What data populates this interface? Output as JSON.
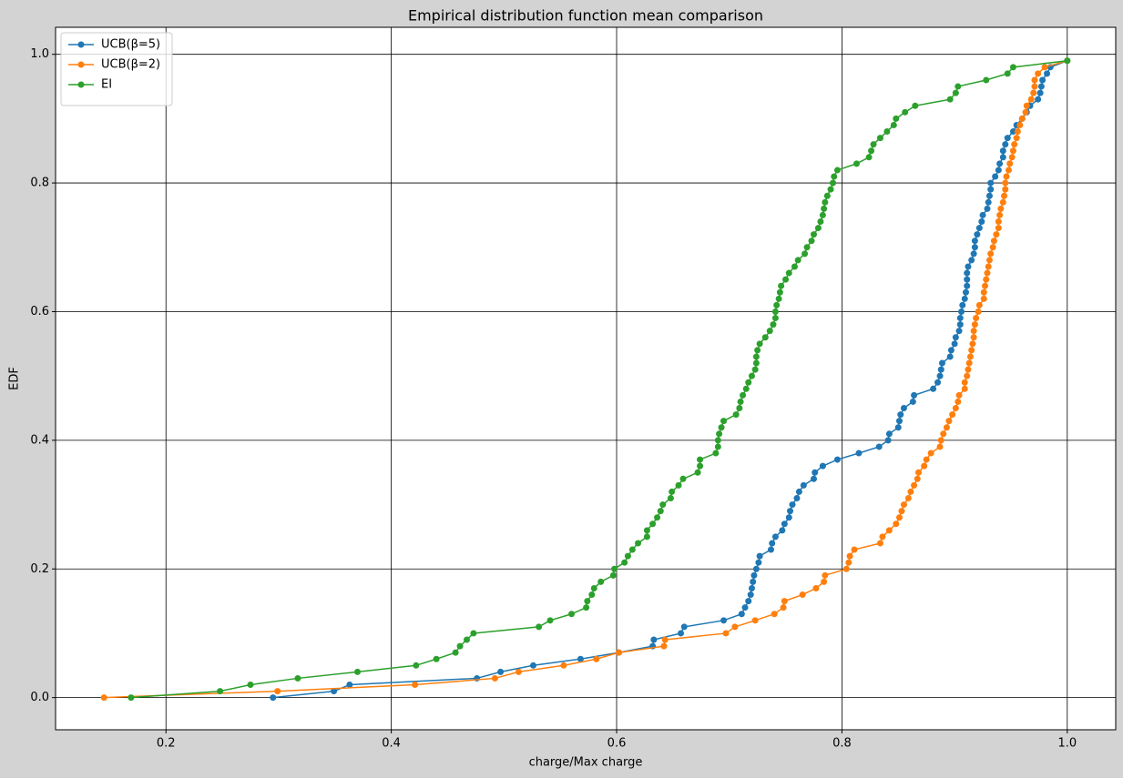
{
  "chart_data": {
    "type": "line",
    "title": "Empirical distribution function mean comparison",
    "xlabel": "charge/Max charge",
    "ylabel": "EDF",
    "xlim": [
      0.102,
      1.043
    ],
    "ylim": [
      -0.05,
      1.042
    ],
    "xticks": [
      0.2,
      0.4,
      0.6,
      0.8,
      {
        "value": 1,
        "label": "1.0"
      }
    ],
    "yticks": [
      {
        "value": 0,
        "label": "0.0"
      },
      0.2,
      0.4,
      0.6,
      0.8,
      {
        "value": 1,
        "label": "1.0"
      }
    ],
    "grid": true,
    "legend": "upper left",
    "series": [
      {
        "name": "UCB(β=5)",
        "color": "#1f77b4",
        "x": [
          0.295,
          0.349,
          0.363,
          0.476,
          0.497,
          0.526,
          0.568,
          0.602,
          0.632,
          0.633,
          0.657,
          0.66,
          0.695,
          0.711,
          0.714,
          0.717,
          0.719,
          0.72,
          0.721,
          0.722,
          0.724,
          0.726,
          0.727,
          0.737,
          0.738,
          0.741,
          0.747,
          0.749,
          0.753,
          0.754,
          0.756,
          0.76,
          0.762,
          0.766,
          0.775,
          0.776,
          0.783,
          0.796,
          0.815,
          0.833,
          0.841,
          0.842,
          0.85,
          0.851,
          0.852,
          0.855,
          0.863,
          0.864,
          0.881,
          0.885,
          0.887,
          0.888,
          0.889,
          0.896,
          0.897,
          0.9,
          0.901,
          0.904,
          0.905,
          0.905,
          0.906,
          0.907,
          0.909,
          0.91,
          0.911,
          0.911,
          0.911,
          0.912,
          0.915,
          0.917,
          0.918,
          0.918,
          0.92,
          0.922,
          0.924,
          0.925,
          0.929,
          0.93,
          0.931,
          0.932,
          0.932,
          0.936,
          0.939,
          0.94,
          0.943,
          0.943,
          0.945,
          0.947,
          0.952,
          0.955,
          0.96,
          0.964,
          0.967,
          0.974,
          0.976,
          0.977,
          0.978,
          0.982,
          0.985,
          1.0
        ],
        "values": [
          0,
          0.01,
          0.02,
          0.03,
          0.04,
          0.05,
          0.06,
          0.07,
          0.08,
          0.09,
          0.1,
          0.11,
          0.12,
          0.13,
          0.14,
          0.15,
          0.16,
          0.17,
          0.18,
          0.19,
          0.2,
          0.21,
          0.22,
          0.23,
          0.24,
          0.25,
          0.26,
          0.27,
          0.28,
          0.29,
          0.3,
          0.31,
          0.32,
          0.33,
          0.34,
          0.35,
          0.36,
          0.37,
          0.38,
          0.39,
          0.4,
          0.41,
          0.42,
          0.43,
          0.44,
          0.45,
          0.46,
          0.47,
          0.48,
          0.49,
          0.5,
          0.51,
          0.52,
          0.53,
          0.54,
          0.55,
          0.56,
          0.57,
          0.58,
          0.59,
          0.6,
          0.61,
          0.62,
          0.63,
          0.64,
          0.65,
          0.66,
          0.67,
          0.68,
          0.69,
          0.7,
          0.71,
          0.72,
          0.73,
          0.74,
          0.75,
          0.76,
          0.77,
          0.78,
          0.79,
          0.8,
          0.81,
          0.82,
          0.83,
          0.84,
          0.85,
          0.86,
          0.87,
          0.88,
          0.89,
          0.9,
          0.91,
          0.92,
          0.93,
          0.94,
          0.95,
          0.96,
          0.97,
          0.98,
          0.99
        ]
      },
      {
        "name": "UCB(β=2)",
        "color": "#ff7f0e",
        "x": [
          0.145,
          0.299,
          0.421,
          0.492,
          0.513,
          0.553,
          0.582,
          0.602,
          0.642,
          0.643,
          0.697,
          0.705,
          0.723,
          0.74,
          0.748,
          0.749,
          0.765,
          0.777,
          0.784,
          0.785,
          0.804,
          0.806,
          0.807,
          0.811,
          0.834,
          0.836,
          0.842,
          0.848,
          0.851,
          0.853,
          0.855,
          0.859,
          0.861,
          0.864,
          0.867,
          0.868,
          0.873,
          0.875,
          0.879,
          0.887,
          0.888,
          0.89,
          0.893,
          0.895,
          0.898,
          0.901,
          0.903,
          0.904,
          0.909,
          0.909,
          0.911,
          0.912,
          0.913,
          0.914,
          0.915,
          0.916,
          0.917,
          0.917,
          0.918,
          0.919,
          0.921,
          0.922,
          0.926,
          0.926,
          0.927,
          0.928,
          0.929,
          0.93,
          0.931,
          0.932,
          0.934,
          0.935,
          0.937,
          0.939,
          0.939,
          0.94,
          0.941,
          0.943,
          0.944,
          0.945,
          0.945,
          0.946,
          0.948,
          0.949,
          0.951,
          0.952,
          0.953,
          0.955,
          0.956,
          0.958,
          0.96,
          0.963,
          0.964,
          0.968,
          0.97,
          0.971,
          0.971,
          0.974,
          0.98,
          1.0
        ],
        "values": [
          0,
          0.01,
          0.02,
          0.03,
          0.04,
          0.05,
          0.06,
          0.07,
          0.08,
          0.09,
          0.1,
          0.11,
          0.12,
          0.13,
          0.14,
          0.15,
          0.16,
          0.17,
          0.18,
          0.19,
          0.2,
          0.21,
          0.22,
          0.23,
          0.24,
          0.25,
          0.26,
          0.27,
          0.28,
          0.29,
          0.3,
          0.31,
          0.32,
          0.33,
          0.34,
          0.35,
          0.36,
          0.37,
          0.38,
          0.39,
          0.4,
          0.41,
          0.42,
          0.43,
          0.44,
          0.45,
          0.46,
          0.47,
          0.48,
          0.49,
          0.5,
          0.51,
          0.52,
          0.53,
          0.54,
          0.55,
          0.56,
          0.57,
          0.58,
          0.59,
          0.6,
          0.61,
          0.62,
          0.63,
          0.64,
          0.65,
          0.66,
          0.67,
          0.68,
          0.69,
          0.7,
          0.71,
          0.72,
          0.73,
          0.74,
          0.75,
          0.76,
          0.77,
          0.78,
          0.79,
          0.8,
          0.81,
          0.82,
          0.83,
          0.84,
          0.85,
          0.86,
          0.87,
          0.88,
          0.89,
          0.9,
          0.91,
          0.92,
          0.93,
          0.94,
          0.95,
          0.96,
          0.97,
          0.98,
          0.99
        ]
      },
      {
        "name": "EI",
        "color": "#2ca02c",
        "x": [
          0.169,
          0.248,
          0.275,
          0.317,
          0.37,
          0.422,
          0.44,
          0.457,
          0.461,
          0.467,
          0.473,
          0.531,
          0.541,
          0.56,
          0.573,
          0.574,
          0.578,
          0.58,
          0.586,
          0.597,
          0.598,
          0.607,
          0.61,
          0.614,
          0.619,
          0.627,
          0.627,
          0.632,
          0.636,
          0.639,
          0.641,
          0.648,
          0.649,
          0.655,
          0.659,
          0.672,
          0.674,
          0.674,
          0.688,
          0.69,
          0.69,
          0.691,
          0.693,
          0.695,
          0.706,
          0.709,
          0.71,
          0.712,
          0.715,
          0.717,
          0.72,
          0.723,
          0.724,
          0.724,
          0.725,
          0.727,
          0.732,
          0.736,
          0.739,
          0.741,
          0.741,
          0.742,
          0.744,
          0.745,
          0.746,
          0.75,
          0.753,
          0.758,
          0.761,
          0.767,
          0.769,
          0.773,
          0.775,
          0.779,
          0.781,
          0.783,
          0.784,
          0.785,
          0.787,
          0.79,
          0.792,
          0.793,
          0.796,
          0.813,
          0.824,
          0.826,
          0.828,
          0.834,
          0.84,
          0.846,
          0.848,
          0.856,
          0.865,
          0.896,
          0.901,
          0.903,
          0.928,
          0.947,
          0.952,
          1.0
        ],
        "values": [
          0,
          0.01,
          0.02,
          0.03,
          0.04,
          0.05,
          0.06,
          0.07,
          0.08,
          0.09,
          0.1,
          0.11,
          0.12,
          0.13,
          0.14,
          0.15,
          0.16,
          0.17,
          0.18,
          0.19,
          0.2,
          0.21,
          0.22,
          0.23,
          0.24,
          0.25,
          0.26,
          0.27,
          0.28,
          0.29,
          0.3,
          0.31,
          0.32,
          0.33,
          0.34,
          0.35,
          0.36,
          0.37,
          0.38,
          0.39,
          0.4,
          0.41,
          0.42,
          0.43,
          0.44,
          0.45,
          0.46,
          0.47,
          0.48,
          0.49,
          0.5,
          0.51,
          0.52,
          0.53,
          0.54,
          0.55,
          0.56,
          0.57,
          0.58,
          0.59,
          0.6,
          0.61,
          0.62,
          0.63,
          0.64,
          0.65,
          0.66,
          0.67,
          0.68,
          0.69,
          0.7,
          0.71,
          0.72,
          0.73,
          0.74,
          0.75,
          0.76,
          0.77,
          0.78,
          0.79,
          0.8,
          0.81,
          0.82,
          0.83,
          0.84,
          0.85,
          0.86,
          0.87,
          0.88,
          0.89,
          0.9,
          0.91,
          0.92,
          0.93,
          0.94,
          0.95,
          0.96,
          0.97,
          0.98,
          0.99
        ]
      }
    ]
  }
}
